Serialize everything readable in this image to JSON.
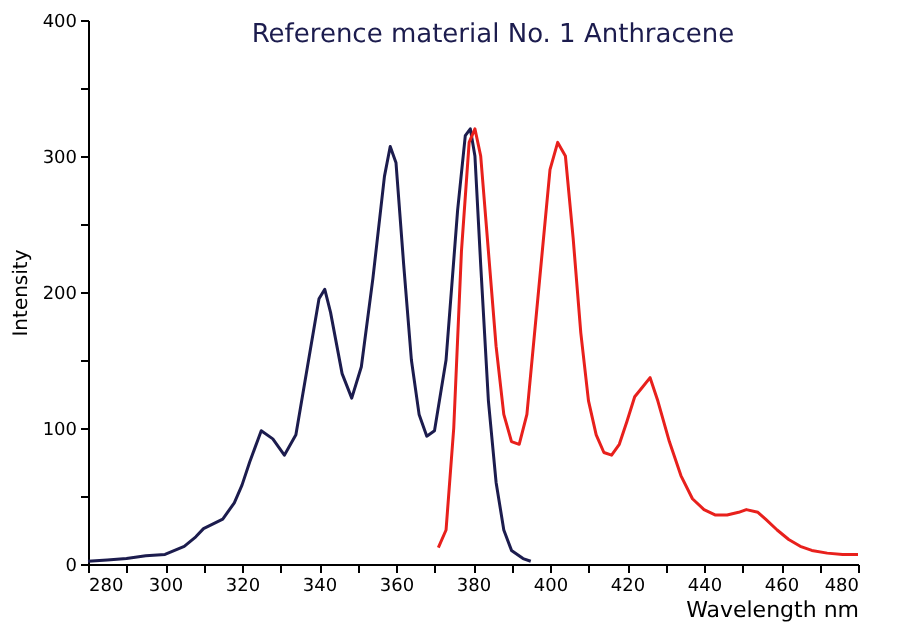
{
  "chart_data": {
    "type": "line",
    "title": "Reference material No. 1   Anthracene",
    "xlabel": "Wavelength nm",
    "ylabel": "Intensity",
    "xlim": [
      280,
      480
    ],
    "xticks": [
      280,
      {
        "value": 290,
        "label": null
      },
      300,
      {
        "value": 310,
        "label": null
      },
      320,
      {
        "value": 330,
        "label": null
      },
      340,
      {
        "value": 350,
        "label": null
      },
      360,
      {
        "value": 370,
        "label": null
      },
      380,
      {
        "value": 390,
        "label": null
      },
      400,
      {
        "value": 410,
        "label": null
      },
      420,
      {
        "value": 430,
        "label": null
      },
      440,
      {
        "value": 450,
        "label": null
      },
      460,
      {
        "value": 470,
        "label": null
      },
      480
    ],
    "ylim": [
      0,
      400
    ],
    "yticks": [
      0,
      {
        "value": 50,
        "label": null
      },
      100,
      {
        "value": 150,
        "label": null
      },
      200,
      {
        "value": 250,
        "label": null
      },
      300,
      {
        "value": 350,
        "label": null
      },
      400
    ],
    "grid": false,
    "legend": false,
    "marker": "none",
    "line_style": "solid",
    "series": [
      {
        "color": "#1c1c4e",
        "x": [
          280,
          285,
          290,
          295,
          300,
          305,
          308,
          310,
          315,
          318,
          320,
          322,
          325,
          328,
          331,
          334,
          337,
          340,
          341.5,
          343,
          346,
          348.5,
          351,
          354,
          357,
          358.5,
          360,
          362,
          364,
          366,
          368,
          370,
          373,
          376,
          378,
          379.3,
          380.5,
          382,
          384,
          386,
          388,
          390,
          393,
          395
        ],
        "values": [
          2,
          3,
          4,
          6,
          7,
          13,
          20,
          26,
          33,
          45,
          58,
          75,
          98,
          92,
          80,
          95,
          145,
          195,
          202,
          185,
          140,
          122,
          145,
          210,
          285,
          307,
          295,
          220,
          150,
          110,
          94,
          98,
          150,
          260,
          315,
          320,
          300,
          220,
          120,
          60,
          25,
          10,
          4,
          2
        ]
      },
      {
        "color": "#e8201c",
        "x": [
          371,
          373,
          375,
          377,
          379,
          380.5,
          382,
          384,
          386,
          388,
          390,
          392,
          394,
          397,
          400,
          402,
          404,
          406,
          408,
          410,
          412,
          414,
          416,
          418,
          420,
          422,
          424,
          426,
          428,
          431,
          434,
          437,
          440,
          443,
          446,
          449,
          451,
          454,
          456,
          459,
          462,
          465,
          468,
          472,
          476,
          480
        ],
        "values": [
          12,
          25,
          100,
          230,
          310,
          320,
          300,
          230,
          160,
          110,
          90,
          88,
          110,
          200,
          290,
          310,
          300,
          240,
          170,
          120,
          95,
          82,
          80,
          88,
          105,
          123,
          130,
          137,
          120,
          90,
          65,
          48,
          40,
          36,
          36,
          38,
          40,
          38,
          33,
          25,
          18,
          13,
          10,
          8,
          7,
          7
        ]
      }
    ]
  }
}
